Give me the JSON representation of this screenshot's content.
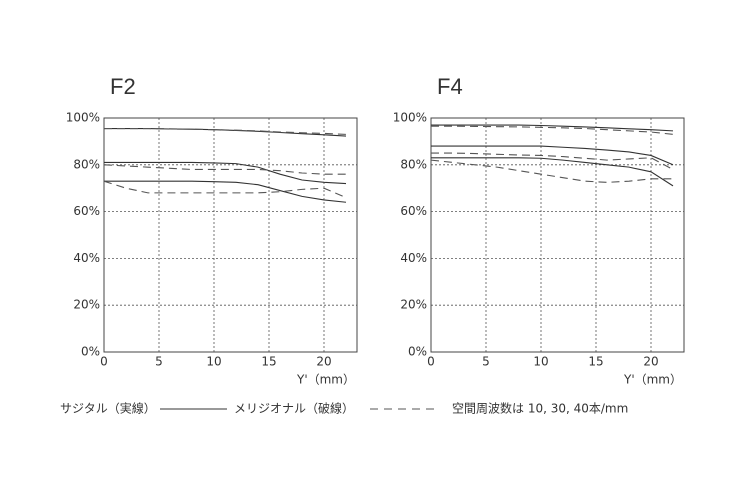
{
  "chart_data": [
    {
      "type": "line",
      "title": "F2",
      "xlabel": "Y'（mm）",
      "x": [
        0,
        2,
        4,
        6,
        8,
        10,
        12,
        14,
        16,
        18,
        20,
        22
      ],
      "xlim": [
        0,
        23
      ],
      "xticks": [
        0,
        5,
        10,
        15,
        20
      ],
      "ylim": [
        0,
        100
      ],
      "yticks": [
        {
          "value": 0,
          "label": "0%"
        },
        {
          "value": 20,
          "label": "20%"
        },
        {
          "value": 40,
          "label": "40%"
        },
        {
          "value": 60,
          "label": "60%"
        },
        {
          "value": 80,
          "label": "80%"
        },
        {
          "value": 100,
          "label": "100%"
        }
      ],
      "grid": true,
      "series": [
        {
          "color": "#333333",
          "style": "solid",
          "values": [
            95.5,
            95.5,
            95.5,
            95.3,
            95.2,
            95,
            94.7,
            94.3,
            93.8,
            93.3,
            92.8,
            92.3
          ]
        },
        {
          "color": "#333333",
          "style": "solid",
          "values": [
            81,
            81,
            81,
            81,
            81,
            80.8,
            80.5,
            79,
            76,
            73.5,
            72.5,
            72
          ]
        },
        {
          "color": "#333333",
          "style": "solid",
          "values": [
            73,
            73,
            73,
            73,
            73,
            72.8,
            72.5,
            71.5,
            69,
            66.5,
            65,
            64
          ]
        },
        {
          "color": "#555555",
          "style": "dashed",
          "values": [
            95.5,
            95.5,
            95.5,
            95.4,
            95.2,
            95,
            94.8,
            94.5,
            94,
            93.7,
            93.4,
            93
          ]
        },
        {
          "color": "#555555",
          "style": "dashed",
          "values": [
            80,
            79.5,
            79,
            78.5,
            78,
            78,
            78,
            78,
            77.5,
            76.5,
            76,
            76
          ]
        },
        {
          "color": "#555555",
          "style": "dashed",
          "values": [
            73,
            70,
            68,
            68,
            68,
            68,
            68,
            68,
            68.5,
            69.5,
            70,
            66
          ]
        }
      ]
    },
    {
      "type": "line",
      "title": "F4",
      "xlabel": "Y'（mm）",
      "x": [
        0,
        2,
        4,
        6,
        8,
        10,
        12,
        14,
        16,
        18,
        20,
        22
      ],
      "xlim": [
        0,
        23
      ],
      "xticks": [
        0,
        5,
        10,
        15,
        20
      ],
      "ylim": [
        0,
        100
      ],
      "yticks": [
        {
          "value": 0,
          "label": "0%"
        },
        {
          "value": 20,
          "label": "20%"
        },
        {
          "value": 40,
          "label": "40%"
        },
        {
          "value": 60,
          "label": "60%"
        },
        {
          "value": 80,
          "label": "80%"
        },
        {
          "value": 100,
          "label": "100%"
        }
      ],
      "grid": true,
      "series": [
        {
          "color": "#333333",
          "style": "solid",
          "values": [
            97,
            97,
            97,
            97,
            97,
            96.8,
            96.5,
            96.2,
            95.8,
            95.4,
            95,
            94.5
          ]
        },
        {
          "color": "#333333",
          "style": "solid",
          "values": [
            88,
            88,
            88,
            88,
            88,
            88,
            87.5,
            87,
            86.3,
            85.5,
            84,
            80
          ]
        },
        {
          "color": "#333333",
          "style": "solid",
          "values": [
            83,
            83,
            83,
            83,
            83,
            82.8,
            82,
            81,
            80,
            79,
            77,
            71
          ]
        },
        {
          "color": "#555555",
          "style": "dashed",
          "values": [
            96.5,
            96.5,
            96.4,
            96.3,
            96.2,
            96,
            95.8,
            95.5,
            95,
            94.5,
            94,
            93
          ]
        },
        {
          "color": "#555555",
          "style": "dashed",
          "values": [
            85,
            85,
            84.8,
            84.5,
            84.2,
            84,
            83.5,
            82.8,
            82,
            82.5,
            83,
            78
          ]
        },
        {
          "color": "#555555",
          "style": "dashed",
          "values": [
            82,
            81,
            80,
            79,
            77.5,
            76,
            74.5,
            73,
            72.5,
            73,
            74,
            74
          ]
        }
      ]
    }
  ],
  "legend": {
    "sagittal": "サジタル（実線）",
    "meridional": "メリジオナル（破線）",
    "note": "空間周波数は 10, 30, 40本/mm"
  }
}
